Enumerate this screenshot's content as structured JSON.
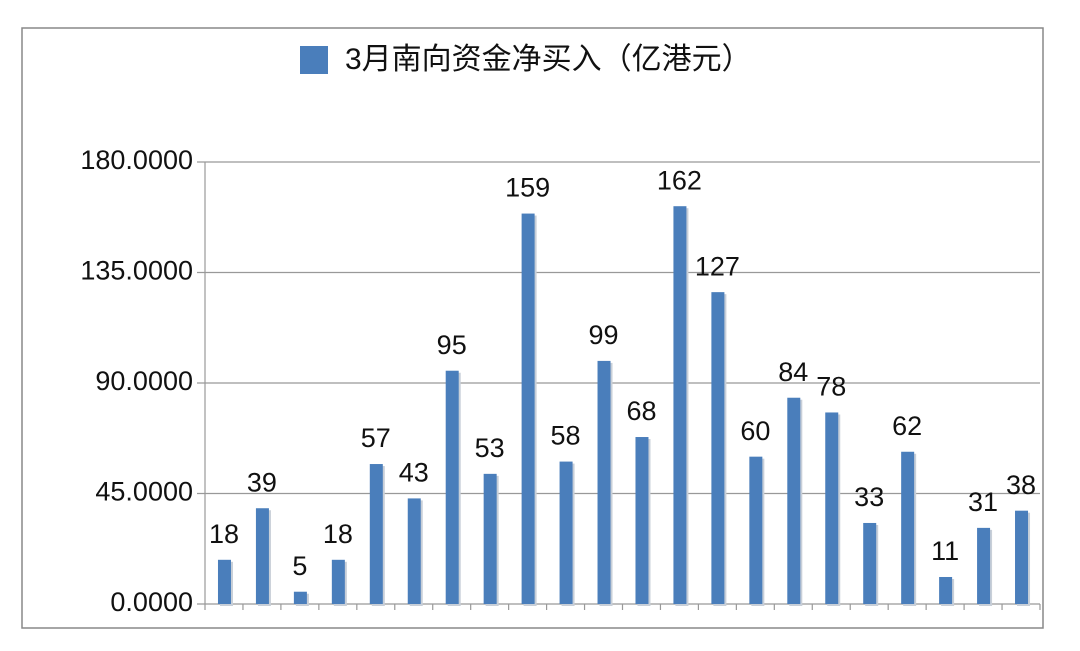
{
  "chart_data": {
    "type": "bar",
    "categories": [
      null,
      null,
      null,
      null,
      null,
      null,
      null,
      null,
      null,
      null,
      null,
      null,
      null,
      null,
      null,
      null,
      null,
      null,
      null,
      null,
      null,
      null
    ],
    "series": [
      {
        "name": "3月南向资金净买入（亿港元）",
        "color": "#4a7ebb",
        "values": [
          18,
          39,
          5,
          18,
          57,
          43,
          95,
          53,
          159,
          58,
          99,
          68,
          162,
          127,
          60,
          84,
          78,
          33,
          62,
          11,
          31,
          38
        ]
      }
    ],
    "ylim": [
      0,
      180
    ],
    "yticks": [
      {
        "value": 0,
        "label": "0.0000"
      },
      {
        "value": 45,
        "label": "45.0000"
      },
      {
        "value": 90,
        "label": "90.0000"
      },
      {
        "value": 135,
        "label": "135.0000"
      },
      {
        "value": 180,
        "label": "180.0000"
      }
    ],
    "grid": true,
    "legend": "top"
  }
}
